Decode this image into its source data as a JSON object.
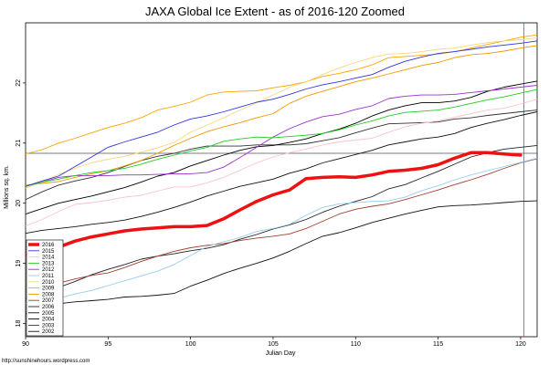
{
  "chart_data": {
    "type": "line",
    "title": "JAXA Global Ice Extent - as of 2016-120 Zoomed",
    "xlabel": "Julian Day",
    "ylabel": "Millions sq. km.",
    "xlim": [
      90,
      121
    ],
    "ylim": [
      17.78,
      23.0
    ],
    "x_ticks": [
      90,
      95,
      100,
      105,
      110,
      115,
      120
    ],
    "y_ticks": [
      18,
      19,
      20,
      21,
      22
    ],
    "reference_hline": 20.83,
    "reference_vline": 120.2,
    "credit": "http://sunshinehours.wordpress.com",
    "x": [
      90,
      91,
      92,
      93,
      94,
      95,
      96,
      97,
      98,
      99,
      100,
      101,
      102,
      103,
      104,
      105,
      106,
      107,
      108,
      109,
      110,
      111,
      112,
      113,
      114,
      115,
      116,
      117,
      118,
      119,
      120,
      121
    ],
    "series": [
      {
        "name": "2016",
        "color": "#ee1111",
        "width": 3.5,
        "values": [
          19.14,
          19.21,
          19.27,
          19.37,
          19.44,
          19.49,
          19.54,
          19.57,
          19.59,
          19.61,
          19.61,
          19.63,
          19.74,
          19.89,
          20.03,
          20.14,
          20.22,
          20.41,
          20.43,
          20.44,
          20.43,
          20.47,
          20.53,
          20.55,
          20.58,
          20.64,
          20.75,
          20.84,
          20.84,
          20.82,
          20.8,
          null
        ]
      },
      {
        "name": "2015",
        "color": "#3333dd",
        "width": 0.9,
        "values": [
          20.28,
          20.37,
          20.45,
          20.61,
          20.77,
          20.93,
          21.02,
          21.1,
          21.18,
          21.3,
          21.4,
          21.45,
          21.52,
          21.6,
          21.68,
          21.73,
          21.81,
          21.9,
          21.97,
          22.02,
          22.08,
          22.14,
          22.26,
          22.36,
          22.43,
          22.49,
          22.52,
          22.56,
          22.6,
          22.63,
          22.66,
          22.7
        ]
      },
      {
        "name": "2014",
        "color": "#ffc0cb",
        "width": 0.9,
        "values": [
          19.62,
          19.73,
          19.86,
          19.98,
          20.01,
          20.05,
          20.1,
          20.13,
          20.2,
          20.27,
          20.27,
          20.34,
          20.43,
          20.55,
          20.67,
          20.77,
          20.84,
          20.9,
          20.97,
          21.02,
          21.05,
          21.08,
          21.18,
          21.27,
          21.33,
          21.37,
          21.43,
          21.49,
          21.55,
          21.58,
          21.65,
          21.73
        ]
      },
      {
        "name": "2013",
        "color": "#22cc22",
        "width": 0.9,
        "values": [
          20.28,
          20.35,
          20.4,
          20.46,
          20.51,
          20.54,
          20.58,
          20.65,
          20.73,
          20.8,
          20.87,
          20.93,
          21.03,
          21.07,
          21.1,
          21.09,
          21.11,
          21.13,
          21.16,
          21.22,
          21.3,
          21.37,
          21.45,
          21.51,
          21.53,
          21.55,
          21.6,
          21.66,
          21.72,
          21.77,
          21.83,
          21.89
        ]
      },
      {
        "name": "2012",
        "color": "#9933cc",
        "width": 0.9,
        "values": [
          20.28,
          20.35,
          20.43,
          20.46,
          20.46,
          20.46,
          20.47,
          20.47,
          20.48,
          20.49,
          20.49,
          20.51,
          20.6,
          20.76,
          20.93,
          21.1,
          21.24,
          21.35,
          21.44,
          21.48,
          21.56,
          21.62,
          21.74,
          21.78,
          21.8,
          21.8,
          21.81,
          21.84,
          21.87,
          21.9,
          21.93,
          21.96
        ]
      },
      {
        "name": "2011",
        "color": "#99ccee",
        "width": 0.9,
        "values": [
          18.33,
          18.38,
          18.42,
          18.49,
          18.55,
          18.63,
          18.71,
          18.79,
          18.87,
          18.98,
          19.13,
          19.28,
          19.36,
          19.43,
          19.53,
          19.58,
          19.65,
          19.8,
          19.93,
          19.99,
          20.01,
          20.03,
          20.04,
          20.1,
          20.21,
          20.29,
          20.39,
          20.47,
          20.54,
          20.61,
          20.68,
          20.75
        ]
      },
      {
        "name": "2010",
        "color": "#f5d87a",
        "width": 0.9,
        "values": [
          20.25,
          20.35,
          20.48,
          20.58,
          20.67,
          20.73,
          20.78,
          20.85,
          20.92,
          21.01,
          21.18,
          21.3,
          21.42,
          21.55,
          21.67,
          21.8,
          21.93,
          22.02,
          22.14,
          22.25,
          22.34,
          22.42,
          22.48,
          22.49,
          22.52,
          22.56,
          22.58,
          22.63,
          22.67,
          22.7,
          22.72,
          22.75
        ]
      },
      {
        "name": "2009",
        "color": "#ffa500",
        "width": 0.9,
        "values": [
          20.82,
          20.89,
          21.0,
          21.08,
          21.17,
          21.26,
          21.33,
          21.42,
          21.55,
          21.61,
          21.68,
          21.8,
          21.85,
          21.86,
          21.87,
          21.92,
          21.96,
          22.02,
          22.11,
          22.16,
          22.22,
          22.3,
          22.42,
          22.44,
          22.46,
          22.48,
          22.52,
          22.58,
          22.64,
          22.7,
          22.76,
          22.8
        ]
      },
      {
        "name": "2008",
        "color": "#ee9900",
        "width": 0.9,
        "values": [
          20.3,
          20.33,
          20.36,
          20.43,
          20.49,
          20.54,
          20.62,
          20.71,
          20.83,
          20.96,
          21.08,
          21.19,
          21.27,
          21.34,
          21.42,
          21.49,
          21.66,
          21.78,
          21.86,
          21.94,
          22.02,
          22.08,
          22.15,
          22.22,
          22.29,
          22.34,
          22.42,
          22.47,
          22.49,
          22.53,
          22.58,
          22.62
        ]
      },
      {
        "name": "2007",
        "color": "#a04030",
        "width": 0.9,
        "values": [
          18.57,
          18.62,
          18.67,
          18.74,
          18.8,
          18.84,
          18.93,
          19.03,
          19.12,
          19.2,
          19.26,
          19.3,
          19.33,
          19.38,
          19.42,
          19.45,
          19.49,
          19.58,
          19.7,
          19.82,
          19.9,
          19.95,
          19.99,
          20.06,
          20.14,
          20.22,
          20.31,
          20.39,
          20.48,
          20.58,
          20.67,
          20.74
        ]
      },
      {
        "name": "2006",
        "color": "#222222",
        "width": 0.9,
        "values": [
          18.41,
          18.5,
          18.6,
          18.7,
          18.81,
          18.9,
          18.98,
          19.07,
          19.12,
          19.16,
          19.21,
          19.25,
          19.31,
          19.4,
          19.48,
          19.57,
          19.64,
          19.73,
          19.85,
          19.95,
          20.03,
          20.11,
          20.24,
          20.31,
          20.42,
          20.53,
          20.65,
          20.77,
          20.84,
          20.9,
          20.93,
          20.96
        ]
      },
      {
        "name": "2005",
        "color": "#111111",
        "width": 0.9,
        "values": [
          19.5,
          19.55,
          19.58,
          19.61,
          19.65,
          19.68,
          19.72,
          19.78,
          19.85,
          19.93,
          20.02,
          20.12,
          20.2,
          20.28,
          20.34,
          20.4,
          20.5,
          20.57,
          20.67,
          20.74,
          20.81,
          20.88,
          20.97,
          21.02,
          21.07,
          21.1,
          21.16,
          21.26,
          21.33,
          21.39,
          21.46,
          21.52
        ]
      },
      {
        "name": "2004",
        "color": "#000000",
        "width": 0.9,
        "values": [
          19.82,
          19.91,
          20.0,
          20.06,
          20.12,
          20.19,
          20.26,
          20.35,
          20.45,
          20.51,
          20.62,
          20.71,
          20.8,
          20.88,
          20.94,
          20.96,
          21.01,
          21.07,
          21.16,
          21.23,
          21.33,
          21.45,
          21.55,
          21.62,
          21.67,
          21.67,
          21.7,
          21.76,
          21.86,
          21.93,
          21.98,
          22.03
        ]
      },
      {
        "name": "2003",
        "color": "#333333",
        "width": 0.9,
        "values": [
          20.06,
          20.19,
          20.3,
          20.37,
          20.43,
          20.51,
          20.61,
          20.71,
          20.78,
          20.83,
          20.9,
          20.95,
          20.95,
          20.95,
          20.97,
          20.97,
          20.97,
          20.99,
          21.04,
          21.09,
          21.17,
          21.25,
          21.32,
          21.33,
          21.34,
          21.35,
          21.4,
          21.42,
          21.46,
          21.49,
          21.52,
          21.55
        ]
      },
      {
        "name": "2002",
        "color": "#111111",
        "width": 0.9,
        "values": [
          18.16,
          18.28,
          18.33,
          18.36,
          18.38,
          18.4,
          18.44,
          18.45,
          18.47,
          18.5,
          18.62,
          18.72,
          18.83,
          18.92,
          19.0,
          19.09,
          19.2,
          19.33,
          19.45,
          19.51,
          19.59,
          19.68,
          19.75,
          19.82,
          19.88,
          19.94,
          19.96,
          19.97,
          19.99,
          20.01,
          20.03,
          20.04
        ]
      }
    ]
  }
}
